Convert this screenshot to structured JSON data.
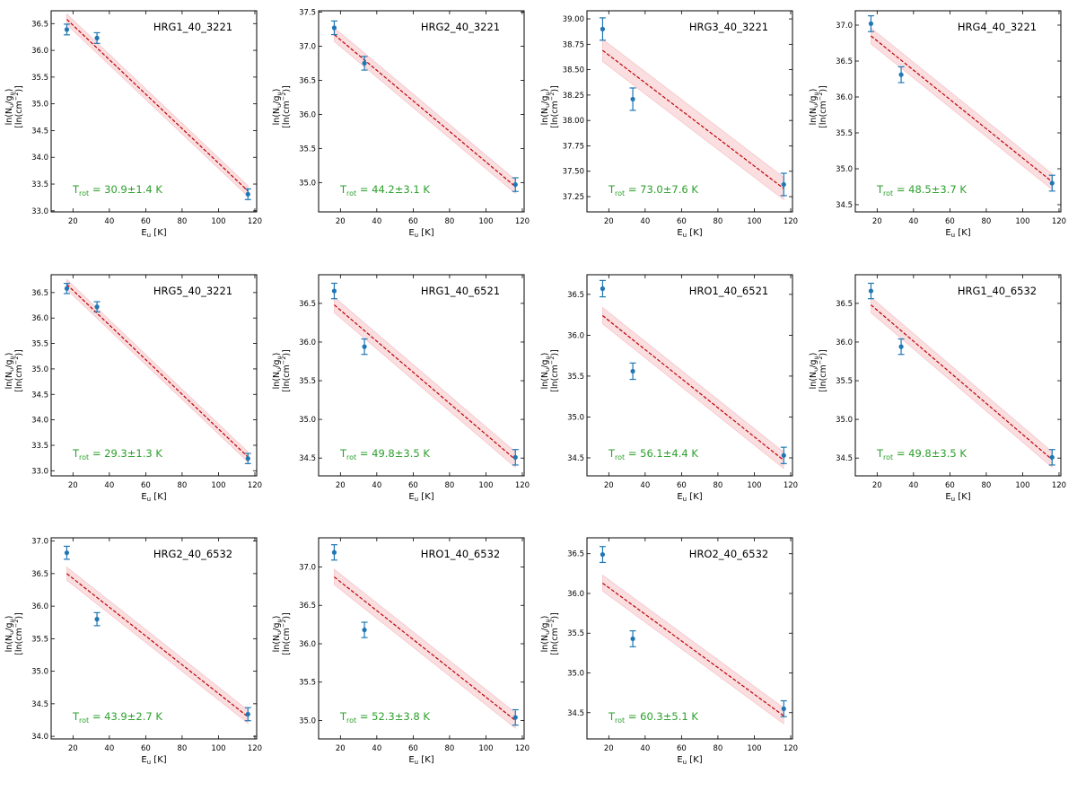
{
  "colors": {
    "point": "#1f77b4",
    "fit_line": "#c00000",
    "band": "#f4b6bb",
    "temp_text": "#2ca02c",
    "axis": "#000000"
  },
  "labels": {
    "xlabel_main": "E",
    "xlabel_sub": "u",
    "xlabel_unit": "[K]",
    "ylabel_line1_a": "ln(N",
    "ylabel_line1_sub1": "u",
    "ylabel_line1_b": "/g",
    "ylabel_line1_sub2": "u",
    "ylabel_line1_c": ")",
    "ylabel_line2_a": "[ln(cm",
    "ylabel_line2_sup": "−2",
    "ylabel_line2_b": ")]",
    "trot_main": "T",
    "trot_sub": "rot"
  },
  "chart_data": [
    {
      "type": "scatter",
      "title": "HRG1_40_3221",
      "x": [
        16.6,
        33.2,
        116.2
      ],
      "y": [
        36.39,
        36.23,
        33.31
      ],
      "yerr": [
        0.1,
        0.1,
        0.1
      ],
      "fit": {
        "x": [
          16.6,
          116.2
        ],
        "y": [
          36.58,
          33.37
        ],
        "band_halfwidth": 0.1
      },
      "xlim": [
        8,
        121
      ],
      "ylim": [
        32.98,
        36.74
      ],
      "xticks": [
        20,
        40,
        60,
        80,
        100,
        120
      ],
      "xticklabels": [
        "20",
        "40",
        "60",
        "80",
        "100",
        "120"
      ],
      "yticks": [
        33.0,
        33.5,
        34.0,
        34.5,
        35.0,
        35.5,
        36.0,
        36.5
      ],
      "yticklabels": [
        "33.0",
        "33.5",
        "34.0",
        "34.5",
        "35.0",
        "35.5",
        "36.0",
        "36.5"
      ],
      "trot_value": "30.9±1.4 K"
    },
    {
      "type": "scatter",
      "title": "HRG2_40_3221",
      "x": [
        16.6,
        33.2,
        116.2
      ],
      "y": [
        37.27,
        36.75,
        34.97
      ],
      "yerr": [
        0.1,
        0.1,
        0.1
      ],
      "fit": {
        "x": [
          16.6,
          116.2
        ],
        "y": [
          37.17,
          34.94
        ],
        "band_halfwidth": 0.1
      },
      "xlim": [
        8,
        121
      ],
      "ylim": [
        34.57,
        37.52
      ],
      "xticks": [
        20,
        40,
        60,
        80,
        100,
        120
      ],
      "xticklabels": [
        "20",
        "40",
        "60",
        "80",
        "100",
        "120"
      ],
      "yticks": [
        35.0,
        35.5,
        36.0,
        36.5,
        37.0,
        37.5
      ],
      "yticklabels": [
        "35.0",
        "35.5",
        "36.0",
        "36.5",
        "37.0",
        "37.5"
      ],
      "trot_value": "44.2±3.1 K"
    },
    {
      "type": "scatter",
      "title": "HRG3_40_3221",
      "x": [
        16.6,
        33.2,
        116.2
      ],
      "y": [
        38.9,
        38.21,
        37.37
      ],
      "yerr": [
        0.11,
        0.11,
        0.11
      ],
      "fit": {
        "x": [
          16.6,
          116.2
        ],
        "y": [
          38.69,
          37.33
        ],
        "band_halfwidth": 0.11
      },
      "xlim": [
        8,
        121
      ],
      "ylim": [
        37.1,
        39.08
      ],
      "xticks": [
        20,
        40,
        60,
        80,
        100,
        120
      ],
      "xticklabels": [
        "20",
        "40",
        "60",
        "80",
        "100",
        "120"
      ],
      "yticks": [
        37.25,
        37.5,
        37.75,
        38.0,
        38.25,
        38.5,
        38.75,
        39.0
      ],
      "yticklabels": [
        "37.25",
        "37.50",
        "37.75",
        "38.00",
        "38.25",
        "38.50",
        "38.75",
        "39.00"
      ],
      "trot_value": "73.0±7.6 K"
    },
    {
      "type": "scatter",
      "title": "HRG4_40_3221",
      "x": [
        16.6,
        33.2,
        116.2
      ],
      "y": [
        37.02,
        36.31,
        34.8
      ],
      "yerr": [
        0.11,
        0.11,
        0.11
      ],
      "fit": {
        "x": [
          16.6,
          116.2
        ],
        "y": [
          36.85,
          34.82
        ],
        "band_halfwidth": 0.11
      },
      "xlim": [
        8,
        121
      ],
      "ylim": [
        34.4,
        37.2
      ],
      "xticks": [
        20,
        40,
        60,
        80,
        100,
        120
      ],
      "xticklabels": [
        "20",
        "40",
        "60",
        "80",
        "100",
        "120"
      ],
      "yticks": [
        34.5,
        35.0,
        35.5,
        36.0,
        36.5,
        37.0
      ],
      "yticklabels": [
        "34.5",
        "35.0",
        "35.5",
        "36.0",
        "36.5",
        "37.0"
      ],
      "trot_value": "48.5±3.7 K"
    },
    {
      "type": "scatter",
      "title": "HRG5_40_3221",
      "x": [
        16.6,
        33.2,
        116.2
      ],
      "y": [
        36.58,
        36.22,
        33.24
      ],
      "yerr": [
        0.1,
        0.1,
        0.1
      ],
      "fit": {
        "x": [
          16.6,
          116.2
        ],
        "y": [
          36.66,
          33.27
        ],
        "band_halfwidth": 0.1
      },
      "xlim": [
        8,
        121
      ],
      "ylim": [
        32.9,
        36.85
      ],
      "xticks": [
        20,
        40,
        60,
        80,
        100,
        120
      ],
      "xticklabels": [
        "20",
        "40",
        "60",
        "80",
        "100",
        "120"
      ],
      "yticks": [
        33.0,
        33.5,
        34.0,
        34.5,
        35.0,
        35.5,
        36.0,
        36.5
      ],
      "yticklabels": [
        "33.0",
        "33.5",
        "34.0",
        "34.5",
        "35.0",
        "35.5",
        "36.0",
        "36.5"
      ],
      "trot_value": "29.3±1.3 K"
    },
    {
      "type": "scatter",
      "title": "HRG1_40_6521",
      "x": [
        16.6,
        33.2,
        116.2
      ],
      "y": [
        36.66,
        35.94,
        34.51
      ],
      "yerr": [
        0.1,
        0.1,
        0.1
      ],
      "fit": {
        "x": [
          16.6,
          116.2
        ],
        "y": [
          36.48,
          34.48
        ],
        "band_halfwidth": 0.1
      },
      "xlim": [
        8,
        121
      ],
      "ylim": [
        34.27,
        36.87
      ],
      "xticks": [
        20,
        40,
        60,
        80,
        100,
        120
      ],
      "xticklabels": [
        "20",
        "40",
        "60",
        "80",
        "100",
        "120"
      ],
      "yticks": [
        34.5,
        35.0,
        35.5,
        36.0,
        36.5
      ],
      "yticklabels": [
        "34.5",
        "35.0",
        "35.5",
        "36.0",
        "36.5"
      ],
      "trot_value": "49.8±3.5 K"
    },
    {
      "type": "scatter",
      "title": "HRO1_40_6521",
      "x": [
        16.6,
        33.2,
        116.2
      ],
      "y": [
        36.57,
        35.56,
        34.53
      ],
      "yerr": [
        0.1,
        0.1,
        0.1
      ],
      "fit": {
        "x": [
          16.6,
          116.2
        ],
        "y": [
          36.24,
          34.47
        ],
        "band_halfwidth": 0.1
      },
      "xlim": [
        8,
        121
      ],
      "ylim": [
        34.28,
        36.74
      ],
      "xticks": [
        20,
        40,
        60,
        80,
        100,
        120
      ],
      "xticklabels": [
        "20",
        "40",
        "60",
        "80",
        "100",
        "120"
      ],
      "yticks": [
        34.5,
        35.0,
        35.5,
        36.0,
        36.5
      ],
      "yticklabels": [
        "34.5",
        "35.0",
        "35.5",
        "36.0",
        "36.5"
      ],
      "trot_value": "56.1±4.4 K"
    },
    {
      "type": "scatter",
      "title": "HRG1_40_6532",
      "x": [
        16.6,
        33.2,
        116.2
      ],
      "y": [
        36.66,
        35.94,
        34.51
      ],
      "yerr": [
        0.1,
        0.1,
        0.1
      ],
      "fit": {
        "x": [
          16.6,
          116.2
        ],
        "y": [
          36.48,
          34.48
        ],
        "band_halfwidth": 0.1
      },
      "xlim": [
        8,
        121
      ],
      "ylim": [
        34.27,
        36.87
      ],
      "xticks": [
        20,
        40,
        60,
        80,
        100,
        120
      ],
      "xticklabels": [
        "20",
        "40",
        "60",
        "80",
        "100",
        "120"
      ],
      "yticks": [
        34.5,
        35.0,
        35.5,
        36.0,
        36.5
      ],
      "yticklabels": [
        "34.5",
        "35.0",
        "35.5",
        "36.0",
        "36.5"
      ],
      "trot_value": "49.8±3.5 K"
    },
    {
      "type": "scatter",
      "title": "HRG2_40_6532",
      "x": [
        16.6,
        33.2,
        116.2
      ],
      "y": [
        36.82,
        35.8,
        34.34
      ],
      "yerr": [
        0.1,
        0.1,
        0.1
      ],
      "fit": {
        "x": [
          16.6,
          116.2
        ],
        "y": [
          36.5,
          34.3
        ],
        "band_halfwidth": 0.1
      },
      "xlim": [
        8,
        121
      ],
      "ylim": [
        33.96,
        37.05
      ],
      "xticks": [
        20,
        40,
        60,
        80,
        100,
        120
      ],
      "xticklabels": [
        "20",
        "40",
        "60",
        "80",
        "100",
        "120"
      ],
      "yticks": [
        34.0,
        34.5,
        35.0,
        35.5,
        36.0,
        36.5,
        37.0
      ],
      "yticklabels": [
        "34.0",
        "34.5",
        "35.0",
        "35.5",
        "36.0",
        "36.5",
        "37.0"
      ],
      "trot_value": "43.9±2.7 K"
    },
    {
      "type": "scatter",
      "title": "HRO1_40_6532",
      "x": [
        16.6,
        33.2,
        116.2
      ],
      "y": [
        37.19,
        36.18,
        35.04
      ],
      "yerr": [
        0.1,
        0.1,
        0.1
      ],
      "fit": {
        "x": [
          16.6,
          116.2
        ],
        "y": [
          36.87,
          35.0
        ],
        "band_halfwidth": 0.1
      },
      "xlim": [
        8,
        121
      ],
      "ylim": [
        34.76,
        37.38
      ],
      "xticks": [
        20,
        40,
        60,
        80,
        100,
        120
      ],
      "xticklabels": [
        "20",
        "40",
        "60",
        "80",
        "100",
        "120"
      ],
      "yticks": [
        35.0,
        35.5,
        36.0,
        36.5,
        37.0
      ],
      "yticklabels": [
        "35.0",
        "35.5",
        "36.0",
        "36.5",
        "37.0"
      ],
      "trot_value": "52.3±3.8 K"
    },
    {
      "type": "scatter",
      "title": "HRO2_40_6532",
      "x": [
        16.6,
        33.2,
        116.2
      ],
      "y": [
        36.49,
        35.43,
        34.55
      ],
      "yerr": [
        0.1,
        0.1,
        0.1
      ],
      "fit": {
        "x": [
          16.6,
          116.2
        ],
        "y": [
          36.13,
          34.46
        ],
        "band_halfwidth": 0.1
      },
      "xlim": [
        8,
        121
      ],
      "ylim": [
        34.17,
        36.7
      ],
      "xticks": [
        20,
        40,
        60,
        80,
        100,
        120
      ],
      "xticklabels": [
        "20",
        "40",
        "60",
        "80",
        "100",
        "120"
      ],
      "yticks": [
        34.5,
        35.0,
        35.5,
        36.0,
        36.5
      ],
      "yticklabels": [
        "34.5",
        "35.0",
        "35.5",
        "36.0",
        "36.5"
      ],
      "trot_value": "60.3±5.1 K"
    }
  ]
}
